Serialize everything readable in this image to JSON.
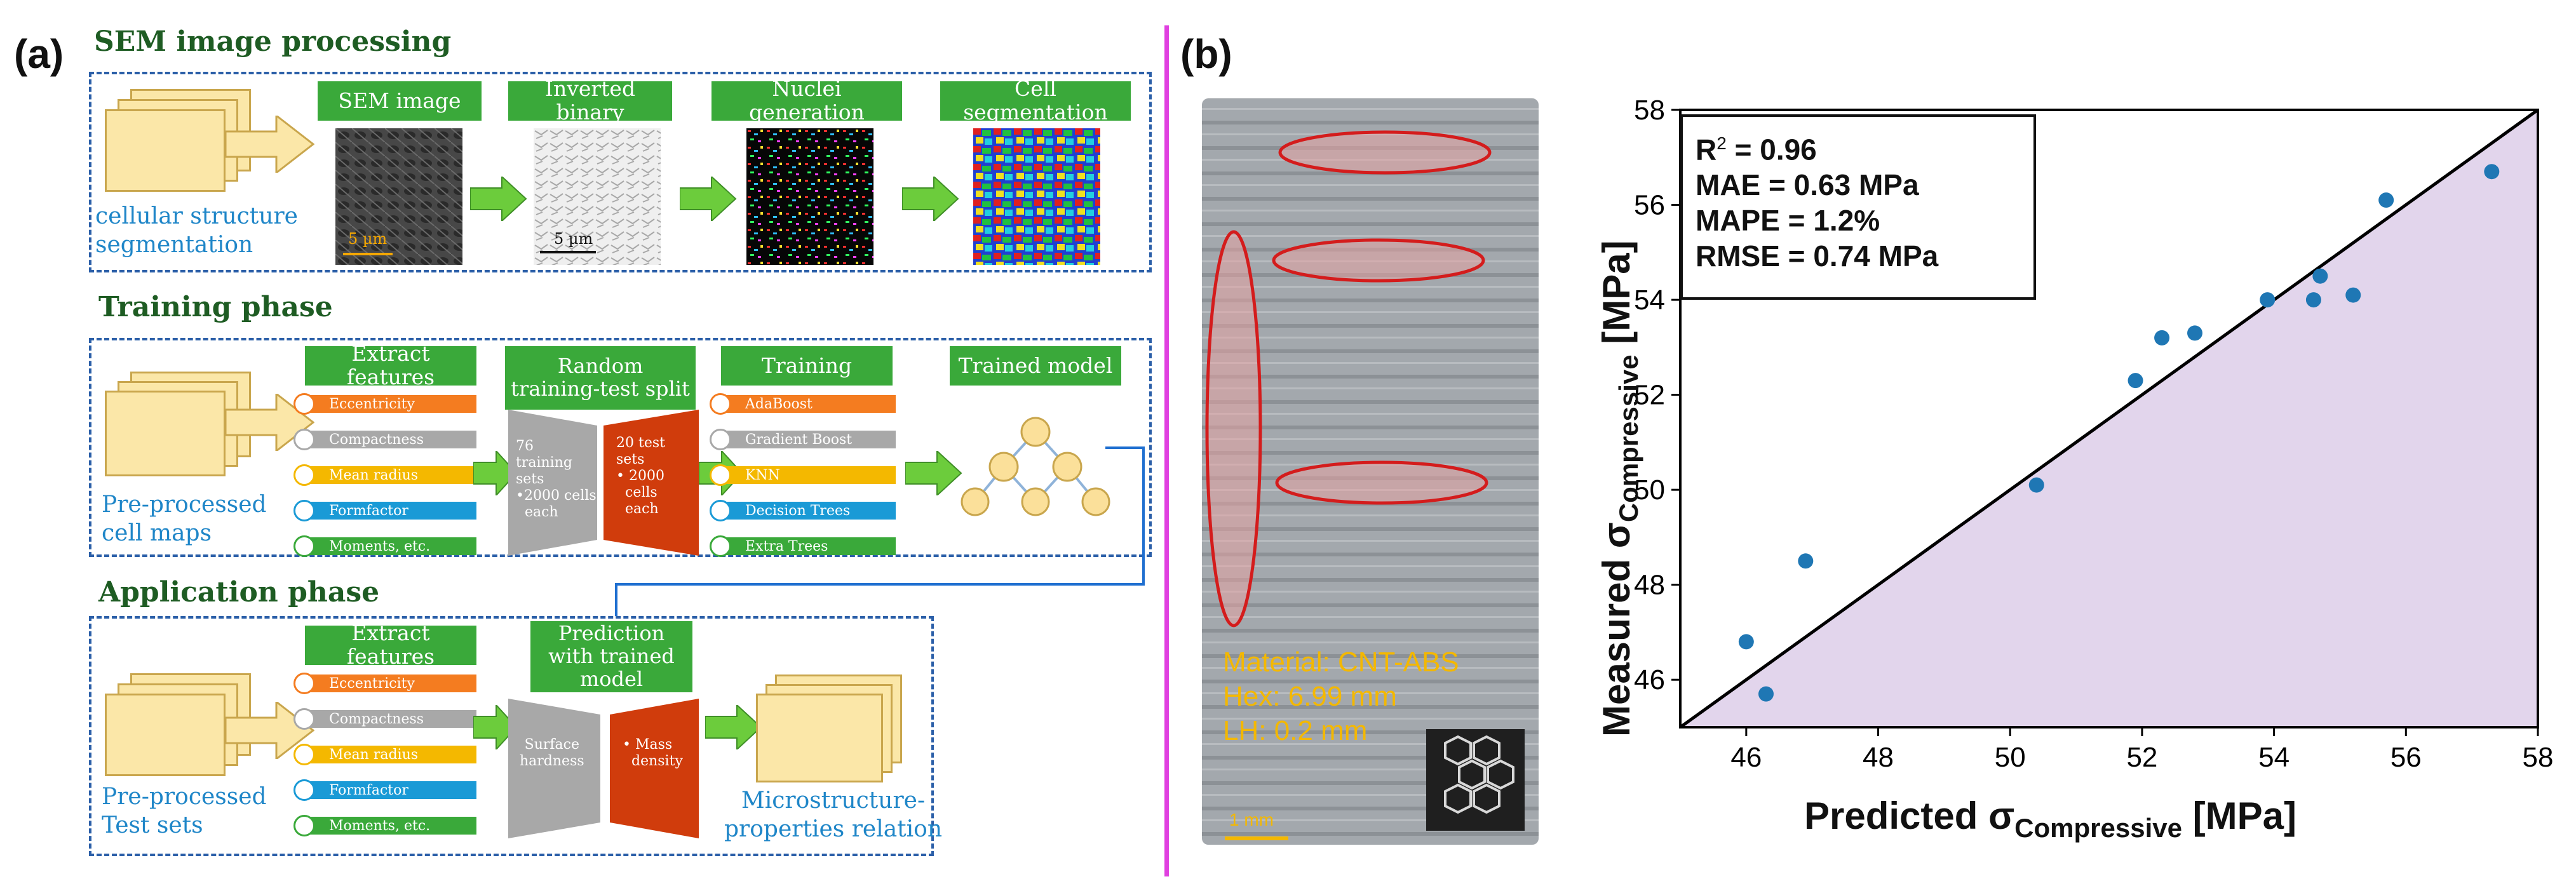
{
  "panel_a": {
    "tag": "(a)",
    "sem": {
      "title": "SEM image processing",
      "input_label_line1": "cellular structure",
      "input_label_line2": "segmentation",
      "steps": [
        "SEM image",
        "Inverted binary",
        "Nuclei generation",
        "Cell segmentation"
      ],
      "scalebar_sem": "5 µm",
      "scalebar_bin": "5 µm"
    },
    "training": {
      "title": "Training phase",
      "input_label_line1": "Pre-processed",
      "input_label_line2": "cell maps",
      "extract_label": "Extract features",
      "features": [
        "Eccentricity",
        "Compactness",
        "Mean radius",
        "Formfactor",
        "Moments, etc."
      ],
      "split_label": "Random training-test split",
      "train_sets_line1": "76",
      "train_sets_line2": "training",
      "train_sets_line3": "sets",
      "train_sets_line4": "•2000 cells",
      "train_sets_line5": "each",
      "test_sets_line1": "20 test",
      "test_sets_line2": "sets",
      "test_sets_line3": "• 2000",
      "test_sets_line4": "cells",
      "test_sets_line5": "each",
      "training_label": "Training",
      "models": [
        "AdaBoost",
        "Gradient Boost",
        "KNN",
        "Decision Trees",
        "Extra Trees"
      ],
      "trained_label": "Trained model"
    },
    "application": {
      "title": "Application phase",
      "input_label_line1": "Pre-processed",
      "input_label_line2": "Test sets",
      "extract_label": "Extract features",
      "features": [
        "Eccentricity",
        "Compactness",
        "Mean radius",
        "Formfactor",
        "Moments, etc."
      ],
      "predict_label": "Prediction with trained model",
      "surface_line1": "Surface",
      "surface_line2": "hardness",
      "mass_line1": "• Mass",
      "mass_line2": "density",
      "output_label_line1": "Microstructure-",
      "output_label_line2": "properties relation"
    }
  },
  "panel_b": {
    "tag": "(b)",
    "photo": {
      "material": "Material: CNT-ABS",
      "hex": "Hex: 6.99 mm",
      "lh": "LH: 0.2 mm",
      "scalebar": "1 mm"
    },
    "colors": {
      "divider": "#e040e0",
      "fill": "#e2d5ec",
      "point": "#1f77b4",
      "green": "#3aa93a"
    }
  },
  "chart_data": {
    "type": "scatter",
    "xlabel_main": "Predicted σ",
    "xlabel_sub": "Compressive",
    "xlabel_unit": " [MPa]",
    "ylabel_main": "Measured σ",
    "ylabel_sub": "Compressive",
    "ylabel_unit": " [MPa]",
    "xlim": [
      45,
      58
    ],
    "ylim": [
      45,
      58
    ],
    "xticks": [
      46,
      48,
      50,
      52,
      54,
      56,
      58
    ],
    "yticks": [
      46,
      48,
      50,
      52,
      54,
      56,
      58
    ],
    "stats": {
      "r2_label": "R",
      "r2_sup": "2",
      "r2_value": " = 0.96",
      "mae": "MAE = 0.63 MPa",
      "mape": "MAPE = 1.2%",
      "rmse": "RMSE = 0.74 MPa"
    },
    "identity_line": true,
    "points": [
      {
        "x": 46.0,
        "y": 46.8
      },
      {
        "x": 46.3,
        "y": 45.7
      },
      {
        "x": 46.9,
        "y": 48.5
      },
      {
        "x": 50.4,
        "y": 50.1
      },
      {
        "x": 51.9,
        "y": 52.3
      },
      {
        "x": 52.3,
        "y": 53.2
      },
      {
        "x": 52.8,
        "y": 53.3
      },
      {
        "x": 53.9,
        "y": 54.0
      },
      {
        "x": 54.6,
        "y": 54.0
      },
      {
        "x": 54.7,
        "y": 54.5
      },
      {
        "x": 55.2,
        "y": 54.1
      },
      {
        "x": 55.7,
        "y": 56.1
      },
      {
        "x": 57.3,
        "y": 56.7
      }
    ]
  }
}
